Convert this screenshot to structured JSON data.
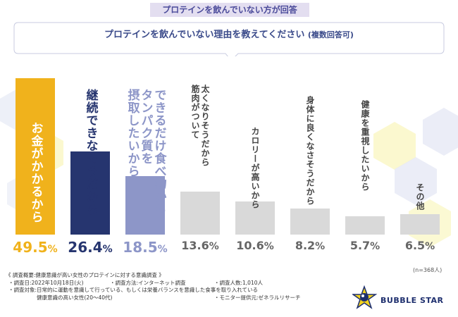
{
  "header": {
    "label": "プロテインを飲んでいない方が回答",
    "question": "プロテインを飲んでいない理由を教えてください",
    "question_note": "(複数回答可)"
  },
  "chart_data": {
    "type": "bar",
    "title": "プロテインを飲んでいない理由を教えてください",
    "categories": [
      "お金がかかるから",
      "継続できなそうだから",
      "できるだけ食べ物からタンパク質を摂取したいから",
      "太くなりそうだから筋肉がついて",
      "カロリーが高いから",
      "身体に良くなさそうだから",
      "健康を重視したいから",
      "その他"
    ],
    "values": [
      49.5,
      26.4,
      18.5,
      13.6,
      10.6,
      8.2,
      5.7,
      6.5
    ],
    "unit": "%",
    "ylim": [
      0,
      50
    ],
    "colors": [
      "#f0b21c",
      "#26356f",
      "#8d96c8",
      "#d9d9d9",
      "#d9d9d9",
      "#d9d9d9",
      "#d9d9d9",
      "#d9d9d9"
    ],
    "value_colors": [
      "#f0b21c",
      "#26356f",
      "#8d96c8",
      "#666666",
      "#666666",
      "#666666",
      "#666666",
      "#666666"
    ],
    "label_colors": [
      "#ffffff",
      "#26356f",
      "#8d96c8",
      "#444444",
      "#444444",
      "#444444",
      "#444444",
      "#444444"
    ],
    "label_lines": [
      [
        "お金がかかるから"
      ],
      [
        "継続できなそうだから"
      ],
      [
        "できるだけ食べ物から",
        "タンパク質を",
        "摂取したいから"
      ],
      [
        "太くなりそうだから",
        "筋肉がついて"
      ],
      [
        "カロリーが高いから"
      ],
      [
        "身体に良くなさそうだから"
      ],
      [
        "健康を重視したいから"
      ],
      [
        "その他"
      ]
    ],
    "value_labels": [
      "49.5",
      "26.4",
      "18.5",
      "13.6",
      "10.6",
      "8.2",
      "5.7",
      "6.5"
    ],
    "sample_size": "(n=368人)"
  },
  "footer": {
    "title": "《 調査概要:健康意識が高い女性のプロテインに対する意識調査 》",
    "date": "・調査日:2022年10月18日(火)",
    "method": "・調査方法:インターネット調査",
    "count": "・調査人数:1,010人",
    "target": "・調査対象:日常的に運動を意識して行っている、もしくは栄養バランスを意識した食事を取り入れている",
    "target2": "健康意識の高い女性(20〜40代)",
    "provider": "・モニター提供元:ゼネラルリサーチ"
  },
  "logo": {
    "text": "BUBBLE STAR",
    "icon": "star-logo-icon"
  },
  "colors": {
    "accent": "#26356f",
    "hex": "#f4f08a",
    "hex2": "#dfe3f2"
  }
}
